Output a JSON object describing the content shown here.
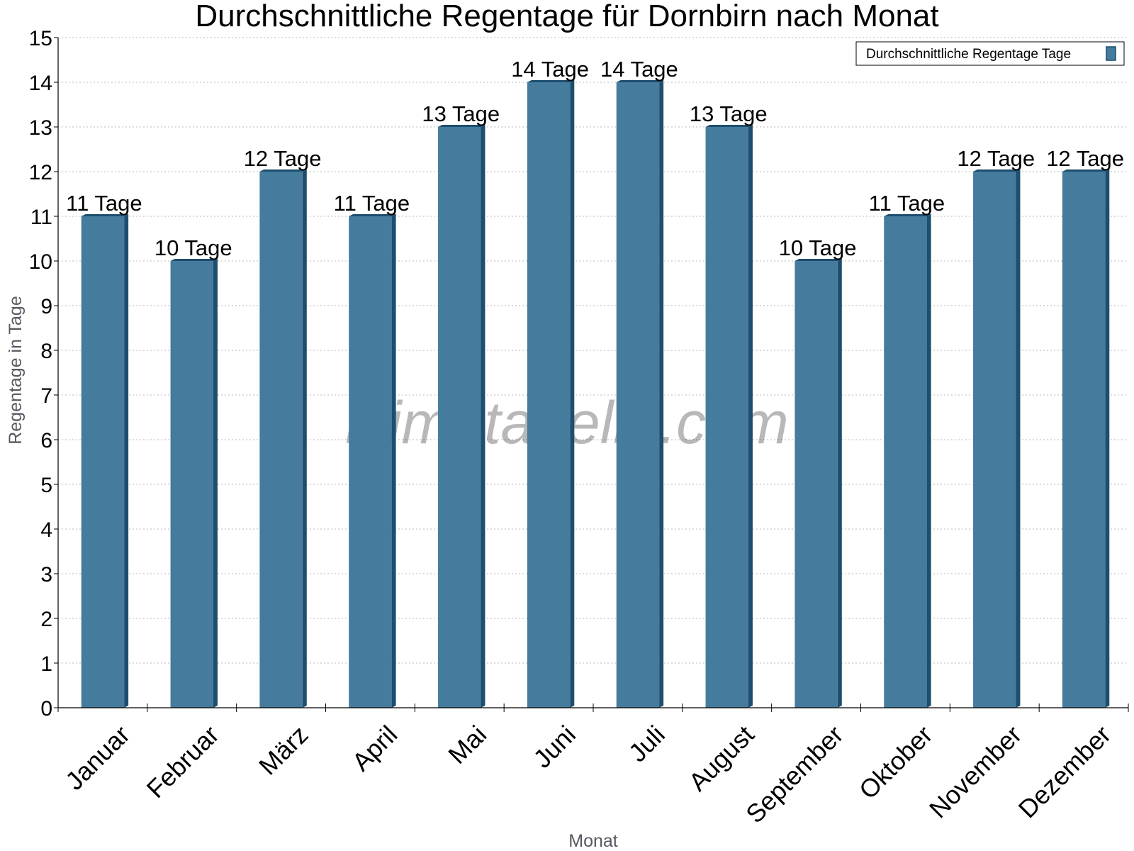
{
  "chart_data": {
    "type": "bar",
    "title": "Durchschnittliche Regentage für Dornbirn nach Monat",
    "xlabel": "Monat",
    "ylabel": "Regentage in Tage",
    "categories": [
      "Januar",
      "Februar",
      "März",
      "April",
      "Mai",
      "Juni",
      "Juli",
      "August",
      "September",
      "Oktober",
      "November",
      "Dezember"
    ],
    "series": [
      {
        "name": "Durchschnittliche Regentage Tage",
        "values": [
          11,
          10,
          12,
          11,
          13,
          14,
          14,
          13,
          10,
          11,
          12,
          12
        ]
      }
    ],
    "data_labels": [
      "11 Tage",
      "10 Tage",
      "12 Tage",
      "11 Tage",
      "13 Tage",
      "14 Tage",
      "14 Tage",
      "13 Tage",
      "10 Tage",
      "11 Tage",
      "12 Tage",
      "12 Tage"
    ],
    "ylim": [
      0,
      15
    ],
    "yticks": [
      0,
      1,
      2,
      3,
      4,
      5,
      6,
      7,
      8,
      9,
      10,
      11,
      12,
      13,
      14,
      15
    ],
    "grid": true,
    "legend_position": "top-right",
    "bar_color": "#457b9d",
    "bar_side_color": "#1d4e6e",
    "watermark": "klimatabelle.com"
  }
}
